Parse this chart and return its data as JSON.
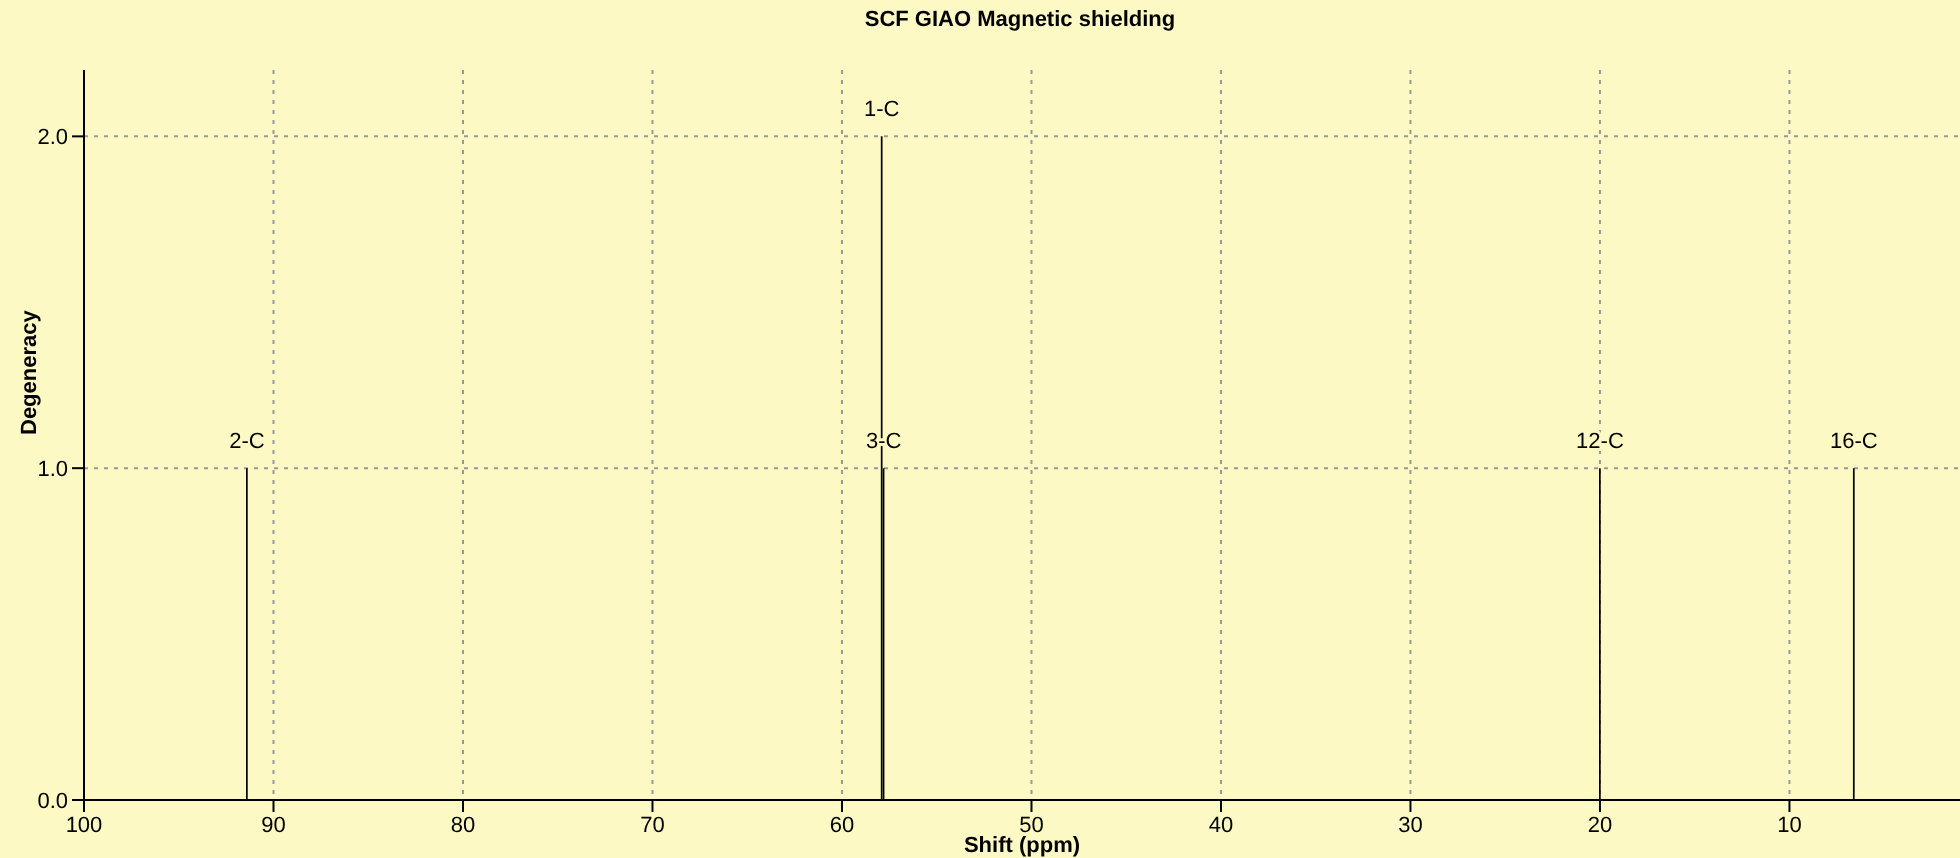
{
  "chart_data": {
    "type": "bar",
    "title": "SCF GIAO Magnetic shielding",
    "xlabel": "Shift (ppm)",
    "ylabel": "Degeneracy",
    "x": [
      91.4,
      57.9,
      57.8,
      20.0,
      6.6
    ],
    "series": [
      {
        "color": "#000000",
        "values": [
          1,
          2,
          1,
          1,
          1
        ]
      }
    ],
    "annotations": [
      {
        "text": "2-C",
        "x": 91.4,
        "y": 1
      },
      {
        "text": "1-C",
        "x": 57.9,
        "y": 2
      },
      {
        "text": "3-C",
        "x": 57.8,
        "y": 1
      },
      {
        "text": "12-C",
        "x": 20.0,
        "y": 1
      },
      {
        "text": "16-C",
        "x": 6.6,
        "y": 1
      }
    ],
    "xlim": [
      100,
      1
    ],
    "xticks": [
      100,
      90,
      80,
      70,
      60,
      50,
      40,
      30,
      20,
      10
    ],
    "ylim": [
      0,
      2.2
    ],
    "yticks": [
      {
        "value": 0,
        "label": "0.0"
      },
      {
        "value": 1,
        "label": "1.0"
      },
      {
        "value": 2,
        "label": "2.0"
      }
    ],
    "grid": true
  }
}
